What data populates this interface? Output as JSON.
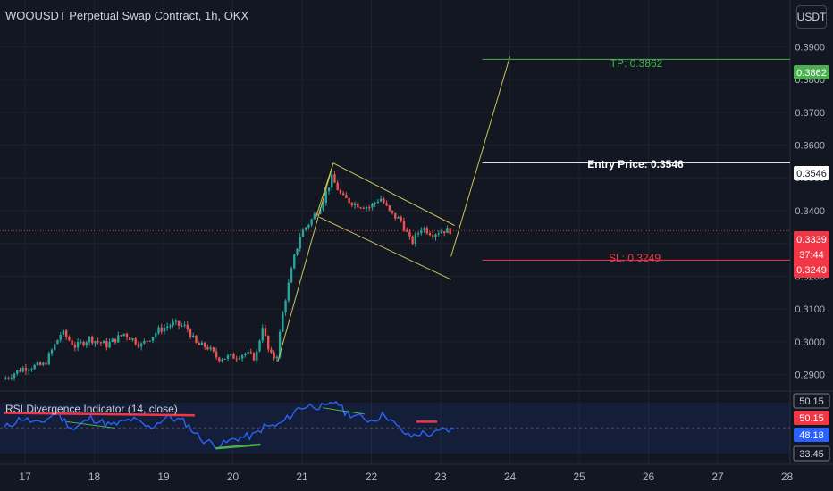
{
  "header": {
    "title": "WOOUSDT Perpetual Swap Contract, 1h, OKX"
  },
  "currency_button": {
    "label": "USDT"
  },
  "rsi_panel": {
    "title": "RSI Divergence Indicator (14, close)",
    "axis_labels": [
      "50.15",
      "50.15",
      "48.18",
      "33.45"
    ],
    "label_colors": [
      "#131722",
      "#f23645",
      "#2962ff",
      "#131722"
    ]
  },
  "annotations": {
    "tp_label": "TP: 0.3862",
    "entry_label": "Entry Price: 0.3546",
    "sl_label": "SL: 0.3249"
  },
  "price_tags": {
    "tp": "0.3862",
    "entry": "0.3546",
    "current": "0.3339",
    "countdown": "37:44",
    "sl": "0.3249"
  },
  "colors": {
    "background": "#131722",
    "up": "#26a69a",
    "down": "#ef5350",
    "tp": "#4caf50",
    "sl": "#f23645",
    "entry": "#ffffff",
    "channel": "#c9c35a",
    "rsi": "#2962ff",
    "grid": "#1e222d"
  },
  "chart_data": {
    "type": "candlestick",
    "symbol": "WOOUSDT",
    "timeframe": "1h",
    "exchange": "OKX",
    "x_ticks": [
      "17",
      "18",
      "19",
      "20",
      "21",
      "22",
      "23",
      "24",
      "25",
      "26",
      "27",
      "28"
    ],
    "y_ticks": [
      "0.3900",
      "0.3800",
      "0.3700",
      "0.3600",
      "0.3500",
      "0.3400",
      "0.3300",
      "0.3200",
      "0.3100",
      "0.3000",
      "0.2900"
    ],
    "ylim": [
      0.2858,
      0.395
    ],
    "levels": {
      "take_profit": 0.3862,
      "entry": 0.3546,
      "stop_loss": 0.3249,
      "last_price": 0.3339
    },
    "price_path": [
      [
        16.7,
        0.2885
      ],
      [
        17.0,
        0.292
      ],
      [
        17.3,
        0.293
      ],
      [
        17.55,
        0.303
      ],
      [
        17.75,
        0.2985
      ],
      [
        17.95,
        0.301
      ],
      [
        18.2,
        0.299
      ],
      [
        18.45,
        0.3025
      ],
      [
        18.7,
        0.299
      ],
      [
        18.95,
        0.3035
      ],
      [
        19.15,
        0.3055
      ],
      [
        19.35,
        0.3045
      ],
      [
        19.5,
        0.299
      ],
      [
        19.65,
        0.2985
      ],
      [
        19.8,
        0.295
      ],
      [
        20.05,
        0.2955
      ],
      [
        20.2,
        0.2965
      ],
      [
        20.35,
        0.295
      ],
      [
        20.45,
        0.305
      ],
      [
        20.55,
        0.296
      ],
      [
        20.65,
        0.295
      ],
      [
        20.75,
        0.31
      ],
      [
        20.9,
        0.325
      ],
      [
        21.0,
        0.333
      ],
      [
        21.15,
        0.337
      ],
      [
        21.3,
        0.342
      ],
      [
        21.45,
        0.35
      ],
      [
        21.6,
        0.344
      ],
      [
        21.8,
        0.342
      ],
      [
        22.0,
        0.341
      ],
      [
        22.15,
        0.344
      ],
      [
        22.3,
        0.339
      ],
      [
        22.45,
        0.337
      ],
      [
        22.6,
        0.33
      ],
      [
        22.75,
        0.335
      ],
      [
        22.9,
        0.333
      ],
      [
        23.05,
        0.334
      ],
      [
        23.15,
        0.3339
      ]
    ],
    "rsi": {
      "name": "RSI Divergence Indicator (14, close)",
      "ylim": [
        25,
        75
      ],
      "levels": [
        70,
        50.15,
        30
      ],
      "path": [
        [
          16.7,
          50
        ],
        [
          16.95,
          58
        ],
        [
          17.2,
          53
        ],
        [
          17.45,
          62
        ],
        [
          17.7,
          49
        ],
        [
          17.95,
          58
        ],
        [
          18.25,
          52
        ],
        [
          18.55,
          57
        ],
        [
          18.8,
          50
        ],
        [
          19.05,
          59
        ],
        [
          19.3,
          55
        ],
        [
          19.55,
          41
        ],
        [
          19.8,
          36
        ],
        [
          20.05,
          42
        ],
        [
          20.3,
          44
        ],
        [
          20.45,
          51
        ],
        [
          20.65,
          52
        ],
        [
          20.8,
          58
        ],
        [
          20.95,
          66
        ],
        [
          21.15,
          68
        ],
        [
          21.35,
          66
        ],
        [
          21.5,
          72
        ],
        [
          21.6,
          63
        ],
        [
          21.8,
          59
        ],
        [
          22.0,
          56
        ],
        [
          22.2,
          61
        ],
        [
          22.35,
          52
        ],
        [
          22.55,
          43
        ],
        [
          22.7,
          46
        ],
        [
          22.9,
          45
        ],
        [
          23.05,
          49
        ],
        [
          23.2,
          48.18
        ]
      ]
    }
  }
}
